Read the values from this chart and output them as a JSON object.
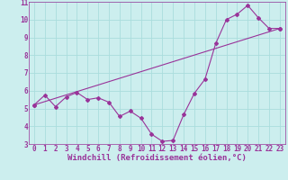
{
  "line1_x": [
    0,
    1,
    2,
    3,
    4,
    5,
    6,
    7,
    8,
    9,
    10,
    11,
    12,
    13,
    14,
    15,
    16,
    17,
    18,
    19,
    20,
    21,
    22,
    23
  ],
  "line1_y": [
    5.2,
    5.75,
    5.1,
    5.65,
    5.9,
    5.5,
    5.6,
    5.35,
    4.55,
    4.85,
    4.45,
    3.55,
    3.15,
    3.2,
    4.65,
    5.85,
    6.65,
    8.65,
    10.0,
    10.3,
    10.8,
    10.1,
    9.5,
    9.5
  ],
  "line2_x": [
    0,
    23
  ],
  "line2_y": [
    5.2,
    9.5
  ],
  "line_color": "#993399",
  "bg_color": "#cceeee",
  "grid_color": "#aadddd",
  "xlabel": "Windchill (Refroidissement éolien,°C)",
  "xlim": [
    -0.5,
    23.5
  ],
  "ylim": [
    3,
    11
  ],
  "yticks": [
    3,
    4,
    5,
    6,
    7,
    8,
    9,
    10,
    11
  ],
  "xticks": [
    0,
    1,
    2,
    3,
    4,
    5,
    6,
    7,
    8,
    9,
    10,
    11,
    12,
    13,
    14,
    15,
    16,
    17,
    18,
    19,
    20,
    21,
    22,
    23
  ],
  "marker": "D",
  "markersize": 2.0,
  "linewidth": 0.8,
  "xlabel_fontsize": 6.5,
  "tick_fontsize": 5.5,
  "label_color": "#993399"
}
